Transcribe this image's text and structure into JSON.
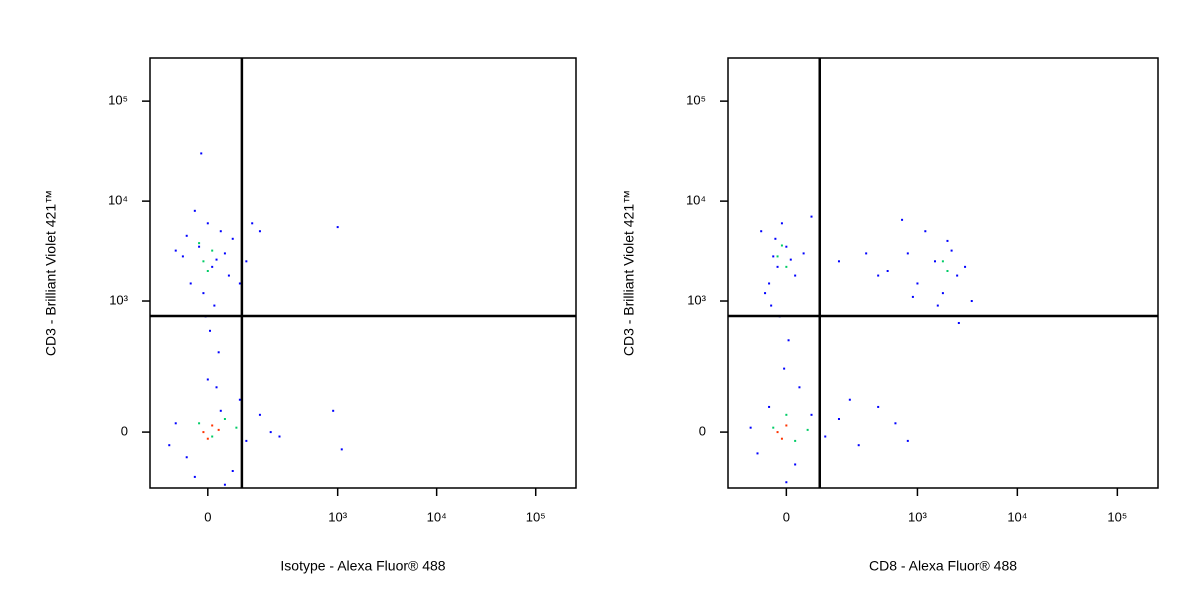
{
  "chart_data": [
    {
      "type": "scatter",
      "xlabel": "Isotype - Alexa Fluor® 488",
      "ylabel": "CD3 - Brilliant Violet 421™",
      "xscale": "logicle",
      "yscale": "logicle",
      "xlim": [
        -175,
        255000
      ],
      "ylim": [
        -164,
        270000
      ],
      "xticks": [
        0,
        {
          "value": 1000,
          "label": "10³"
        },
        {
          "value": 10000,
          "label": "10⁴"
        },
        {
          "value": 100000,
          "label": "10⁵"
        }
      ],
      "yticks": [
        0,
        {
          "value": 1000,
          "label": "10³"
        },
        {
          "value": 10000,
          "label": "10⁴"
        },
        {
          "value": 100000,
          "label": "10⁵"
        }
      ],
      "gate": {
        "x": 86,
        "y": 706
      },
      "series": [
        {
          "color": "#0000ff",
          "x": [
            -40,
            10,
            -20,
            30,
            -60,
            50,
            0,
            -10,
            20,
            60,
            -30,
            40,
            -50,
            15,
            -5,
            80,
            100,
            150,
            120,
            -80,
            -15,
            5,
            25,
            1000,
            -50,
            30,
            100,
            150,
            -80,
            60,
            20,
            200,
            -30,
            80,
            250,
            900,
            1100,
            -100,
            40,
            0
          ],
          "values": [
            1500,
            2200,
            3500,
            5000,
            2800,
            1800,
            6000,
            1200,
            2600,
            4200,
            8000,
            3000,
            4500,
            900,
            700,
            1500,
            2500,
            5000,
            6000,
            3200,
            30000,
            500,
            300,
            5500,
            -60,
            50,
            -20,
            40,
            20,
            -100,
            120,
            0,
            -120,
            80,
            -10,
            50,
            -40,
            -30,
            -150,
            150
          ]
        },
        {
          "color": "#00cc66",
          "x": [
            -10,
            10,
            0,
            -20,
            -20,
            10,
            40,
            70
          ],
          "values": [
            2500,
            3200,
            2000,
            3800,
            20,
            -10,
            30,
            10
          ]
        },
        {
          "color": "#ff3300",
          "x": [
            -10,
            10,
            0,
            25
          ],
          "values": [
            0,
            15,
            -15,
            5
          ]
        }
      ]
    },
    {
      "type": "scatter",
      "xlabel": "CD8 - Alexa Fluor® 488",
      "ylabel": "CD3 - Brilliant Violet 421™",
      "xscale": "logicle",
      "yscale": "logicle",
      "xlim": [
        -175,
        255000
      ],
      "ylim": [
        -164,
        270000
      ],
      "xticks": [
        0,
        {
          "value": 1000,
          "label": "10³"
        },
        {
          "value": 10000,
          "label": "10⁴"
        },
        {
          "value": 100000,
          "label": "10⁵"
        }
      ],
      "yticks": [
        0,
        {
          "value": 1000,
          "label": "10³"
        },
        {
          "value": 10000,
          "label": "10⁴"
        },
        {
          "value": 100000,
          "label": "10⁵"
        }
      ],
      "gate": {
        "x": 83,
        "y": 706
      },
      "series": [
        {
          "color": "#0000ff",
          "x": [
            -40,
            -20,
            0,
            -60,
            -30,
            20,
            -10,
            -50,
            10,
            -25,
            40,
            60,
            -35,
            -15,
            5,
            -5,
            500,
            800,
            1000,
            1500,
            2000,
            2500,
            3000,
            1200,
            1800,
            2200,
            700,
            400,
            300,
            150,
            2600,
            1600,
            3500,
            900,
            -70,
            -40,
            20,
            60,
            100,
            150,
            250,
            400,
            600,
            -90,
            0,
            30,
            200,
            800
          ],
          "values": [
            1500,
            2200,
            3500,
            5000,
            2800,
            1800,
            6000,
            1200,
            2600,
            4200,
            3000,
            7000,
            900,
            700,
            400,
            200,
            2000,
            3000,
            1500,
            2500,
            4000,
            1800,
            2200,
            5000,
            1200,
            3200,
            6500,
            1800,
            3000,
            2500,
            600,
            900,
            1000,
            1100,
            -50,
            60,
            -80,
            40,
            -10,
            30,
            -30,
            60,
            20,
            10,
            -140,
            120,
            80,
            -20
          ]
        },
        {
          "color": "#00cc66",
          "x": [
            -20,
            -10,
            0,
            1800,
            2000,
            -30,
            0,
            20,
            50
          ],
          "values": [
            2800,
            3600,
            2200,
            2500,
            2000,
            10,
            40,
            -20,
            5
          ]
        },
        {
          "color": "#ff3300",
          "x": [
            -20,
            0,
            -10
          ],
          "values": [
            0,
            15,
            -15
          ]
        }
      ]
    }
  ]
}
